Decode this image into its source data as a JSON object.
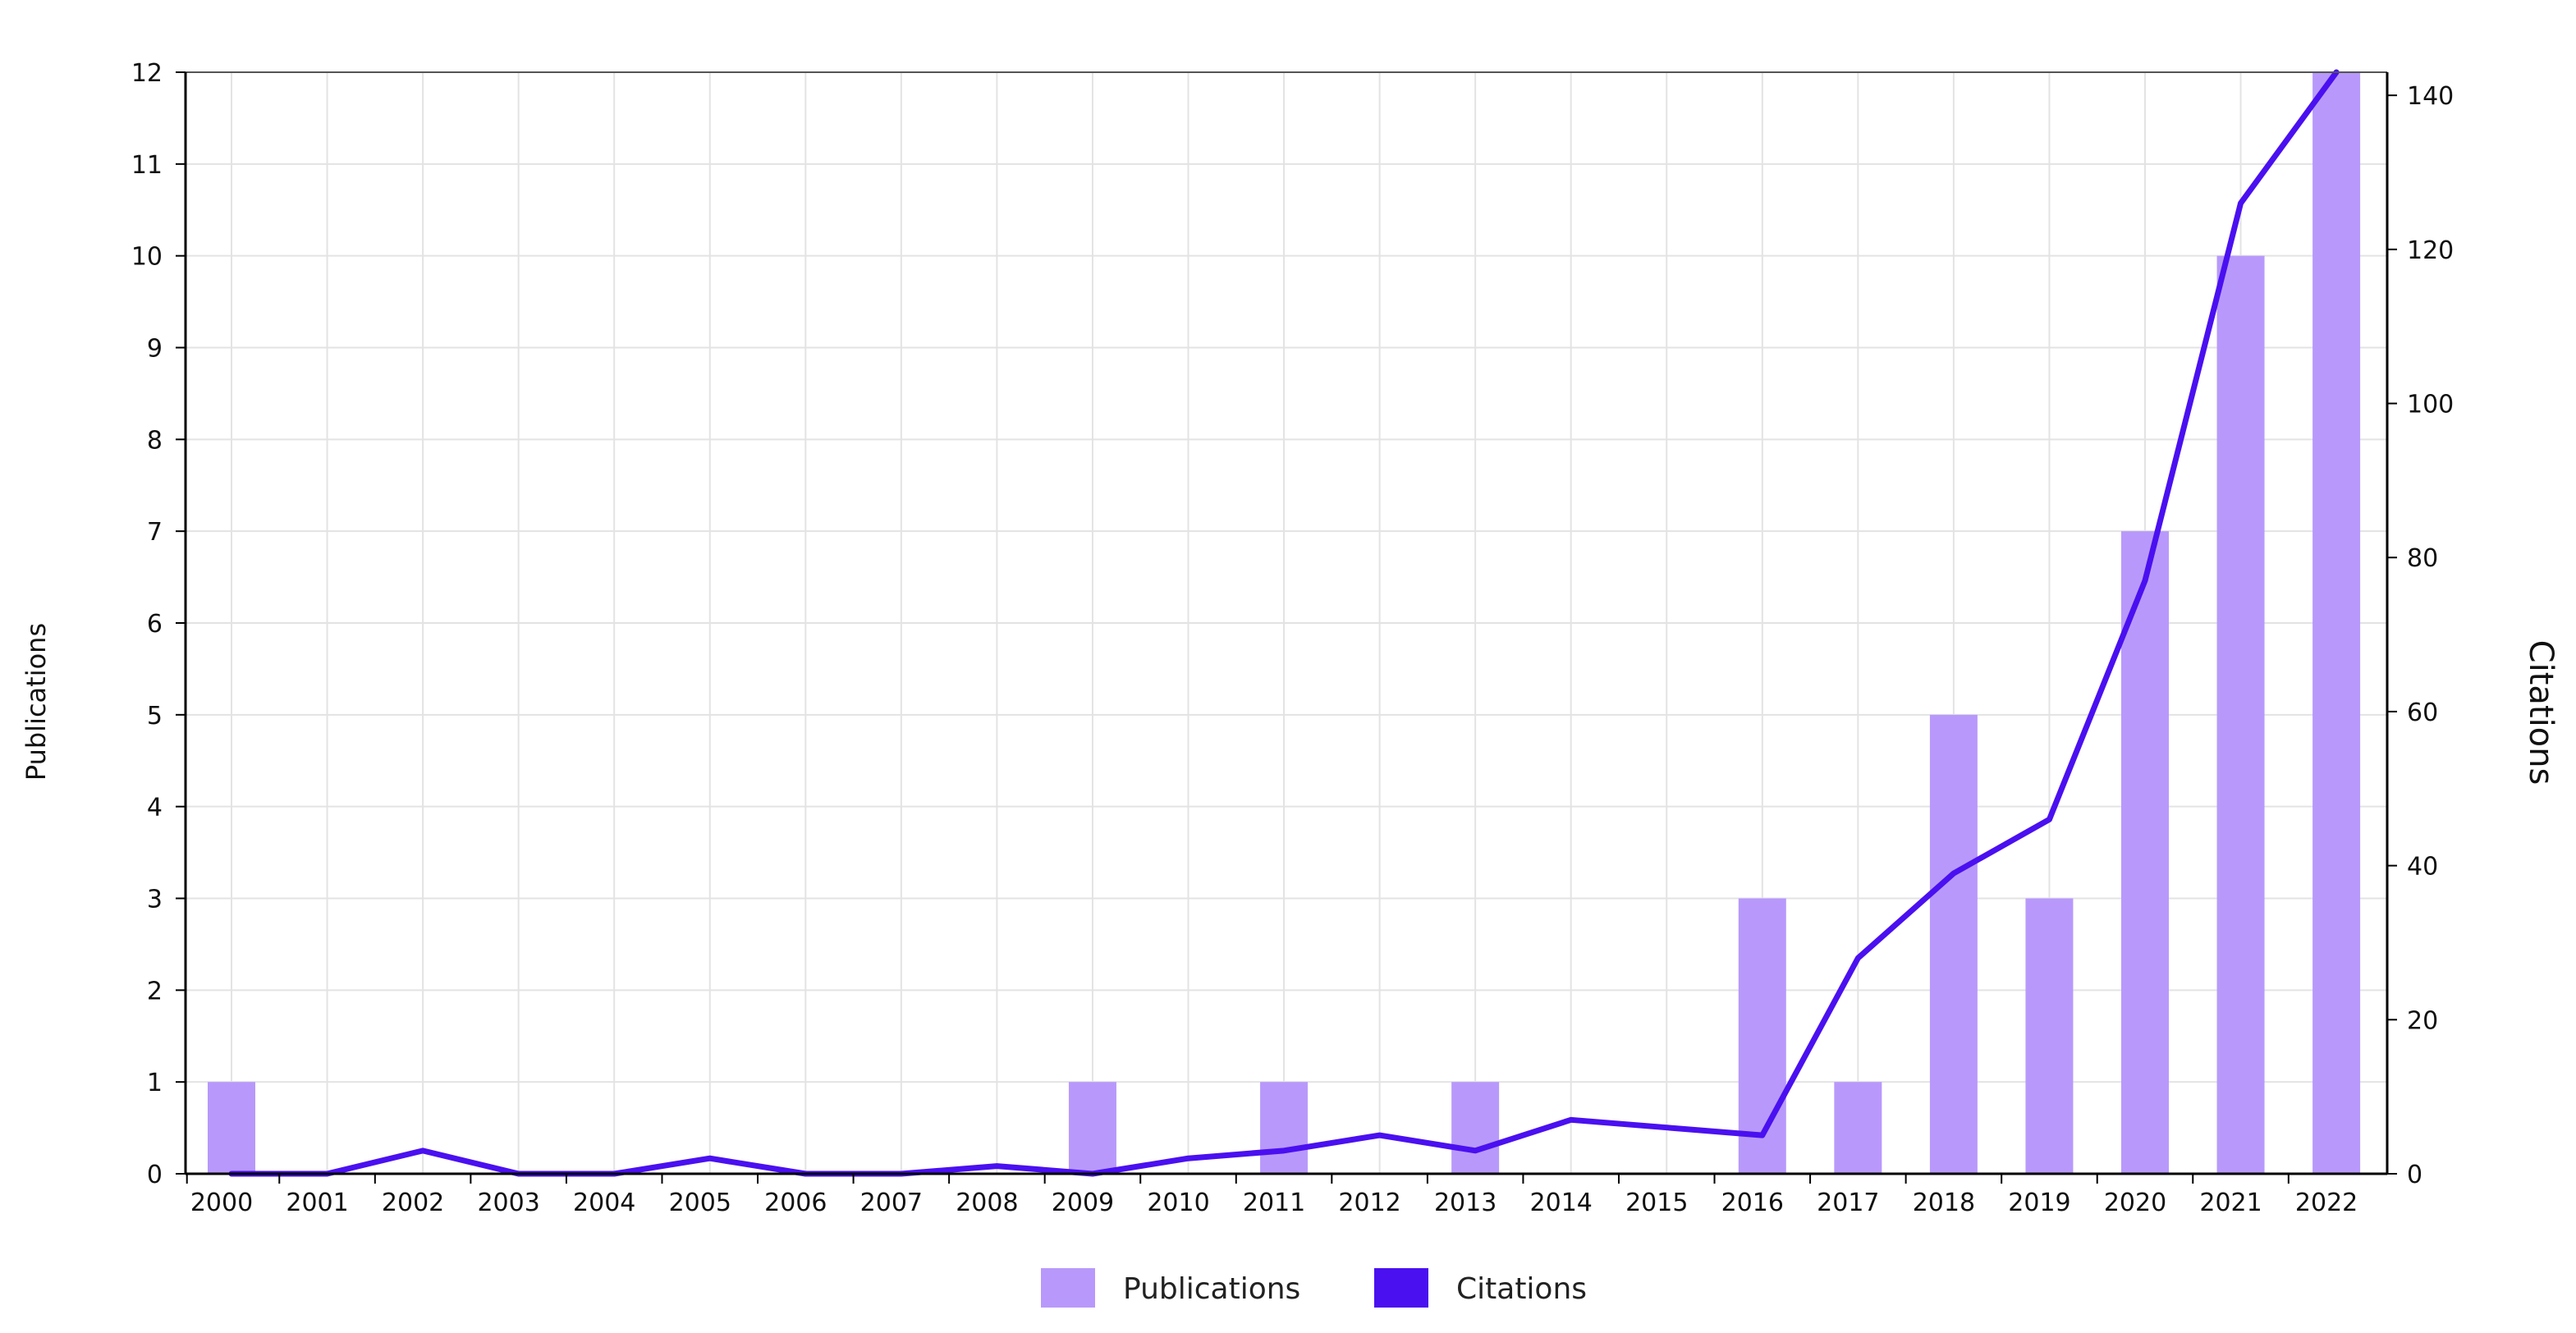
{
  "chart_data": {
    "type": "bar",
    "categories": [
      "2000",
      "2001",
      "2002",
      "2003",
      "2004",
      "2005",
      "2006",
      "2007",
      "2008",
      "2009",
      "2010",
      "2011",
      "2012",
      "2013",
      "2014",
      "2015",
      "2016",
      "2017",
      "2018",
      "2019",
      "2020",
      "2021",
      "2022"
    ],
    "series": [
      {
        "name": "Publications",
        "type": "bar",
        "axis": "left",
        "color": "#b899fb",
        "values": [
          1,
          0,
          0,
          0,
          0,
          0,
          0,
          0,
          0,
          1,
          0,
          1,
          0,
          1,
          0,
          0,
          3,
          1,
          5,
          3,
          7,
          10,
          12
        ]
      },
      {
        "name": "Citations",
        "type": "line",
        "axis": "right",
        "color": "#4a10f0",
        "values": [
          0,
          0,
          3,
          0,
          0,
          2,
          0,
          0,
          1,
          0,
          2,
          3,
          5,
          3,
          7,
          6,
          5,
          28,
          39,
          46,
          77,
          126,
          143
        ]
      }
    ],
    "y_left": {
      "label": "Publications",
      "lim": [
        0,
        12
      ],
      "ticks": [
        0,
        1,
        2,
        3,
        4,
        5,
        6,
        7,
        8,
        9,
        10,
        11,
        12
      ]
    },
    "y_right": {
      "label": "Citations",
      "lim": [
        0,
        143
      ],
      "ticks": [
        0,
        20,
        40,
        60,
        80,
        100,
        120,
        140
      ]
    },
    "grid": true,
    "legend_position": "bottom-center"
  }
}
